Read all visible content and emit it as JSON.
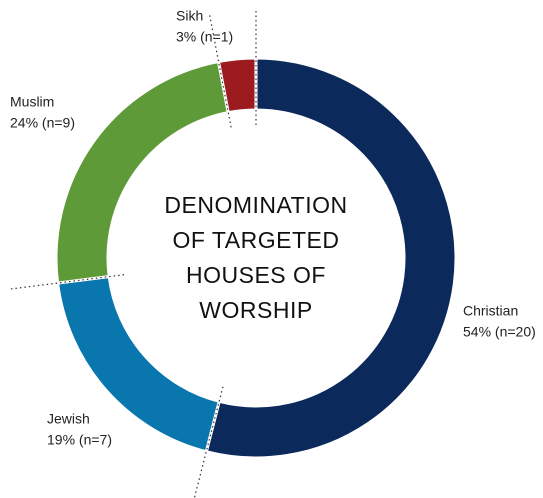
{
  "chart_data": {
    "type": "donut",
    "title": [
      "DENOMINATION",
      "OF TARGETED",
      "HOUSES OF",
      "WORSHIP"
    ],
    "categories": [
      "Christian",
      "Jewish",
      "Muslim",
      "Sikh"
    ],
    "values": [
      54,
      19,
      24,
      3
    ],
    "value_labels": [
      "54% (n=20)",
      "19% (n=7)",
      "24% (n=9)",
      "3% (n=1)"
    ],
    "colors": [
      "#0b2a5b",
      "#0a76ae",
      "#5f9a38",
      "#9b1b1f"
    ]
  }
}
